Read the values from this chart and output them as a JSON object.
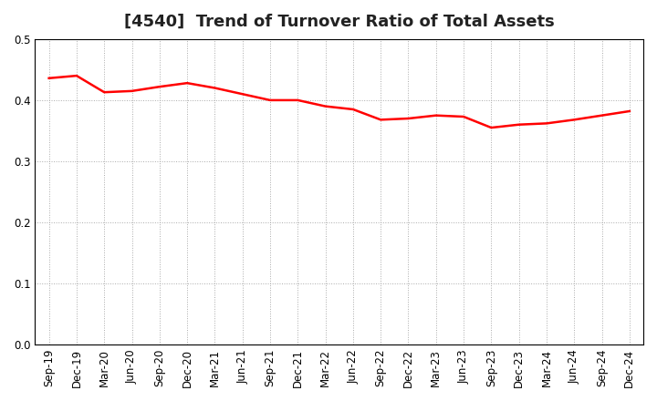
{
  "title": "[4540]  Trend of Turnover Ratio of Total Assets",
  "labels": [
    "Sep-19",
    "Dec-19",
    "Mar-20",
    "Jun-20",
    "Sep-20",
    "Dec-20",
    "Mar-21",
    "Jun-21",
    "Sep-21",
    "Dec-21",
    "Mar-22",
    "Jun-22",
    "Sep-22",
    "Dec-22",
    "Mar-23",
    "Jun-23",
    "Sep-23",
    "Dec-23",
    "Mar-24",
    "Jun-24",
    "Sep-24",
    "Dec-24"
  ],
  "values": [
    0.436,
    0.44,
    0.413,
    0.415,
    0.422,
    0.428,
    0.42,
    0.41,
    0.4,
    0.4,
    0.39,
    0.385,
    0.368,
    0.37,
    0.375,
    0.373,
    0.355,
    0.36,
    0.362,
    0.368,
    0.375,
    0.382
  ],
  "line_color": "#FF0000",
  "line_width": 1.8,
  "ylim": [
    0.0,
    0.5
  ],
  "yticks": [
    0.0,
    0.1,
    0.2,
    0.3,
    0.4,
    0.5
  ],
  "background_color": "#FFFFFF",
  "grid_color": "#AAAAAA",
  "title_fontsize": 13,
  "tick_fontsize": 8.5
}
